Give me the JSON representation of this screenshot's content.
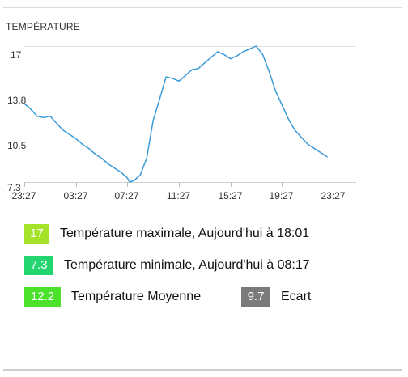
{
  "chart_data": {
    "type": "line",
    "title": "TEMPÉRATURE",
    "xlabel": "",
    "ylabel": "",
    "x_ticks": [
      "23:27",
      "03:27",
      "07:27",
      "11:27",
      "15:27",
      "19:27",
      "23:27"
    ],
    "y_ticks": [
      "7.3",
      "10.5",
      "13.8",
      "17"
    ],
    "ylim": [
      7.3,
      17
    ],
    "xlim_hours": [
      0,
      24
    ],
    "grid": "horizontal",
    "legend": "none",
    "color": "#3a9ad9",
    "series": [
      {
        "x": [
          0,
          0.5,
          1,
          1.5,
          2,
          2.5,
          3,
          3.5,
          4,
          4.5,
          5,
          5.5,
          6,
          6.5,
          7,
          7.5,
          8,
          8.17,
          8.5,
          9,
          9.5,
          10,
          10.5,
          11,
          11.5,
          12,
          12.5,
          13,
          13.5,
          14,
          14.5,
          15,
          15.5,
          16,
          16.5,
          17,
          17.5,
          18,
          18.5,
          19,
          19.5,
          20,
          20.5,
          21,
          21.5,
          22,
          22.5,
          23,
          23.5
        ],
        "values": [
          12.9,
          12.5,
          12.0,
          11.9,
          12.0,
          11.5,
          11.0,
          10.7,
          10.4,
          10.0,
          9.7,
          9.3,
          9.0,
          8.6,
          8.3,
          8.0,
          7.6,
          7.3,
          7.4,
          7.8,
          9.0,
          11.7,
          13.2,
          14.8,
          14.7,
          14.5,
          14.9,
          15.3,
          15.4,
          15.8,
          16.2,
          16.6,
          16.4,
          16.1,
          16.3,
          16.6,
          16.8,
          17.0,
          16.4,
          15.2,
          13.8,
          12.8,
          11.8,
          11.0,
          10.5,
          10.0,
          9.7,
          9.4,
          9.1
        ]
      }
    ]
  },
  "stats": {
    "max": {
      "value": "17",
      "label": "Température maximale, Aujourd'hui à 18:01",
      "color": "#a5e22a"
    },
    "min": {
      "value": "7.3",
      "label": "Température minimale, Aujourd'hui à 08:17",
      "color": "#22d56f"
    },
    "avg": {
      "value": "12.2",
      "label": "Température Moyenne",
      "color": "#4ce12b"
    },
    "gap": {
      "value": "9.7",
      "label": "Ecart",
      "color": "#7a7a7a"
    }
  }
}
